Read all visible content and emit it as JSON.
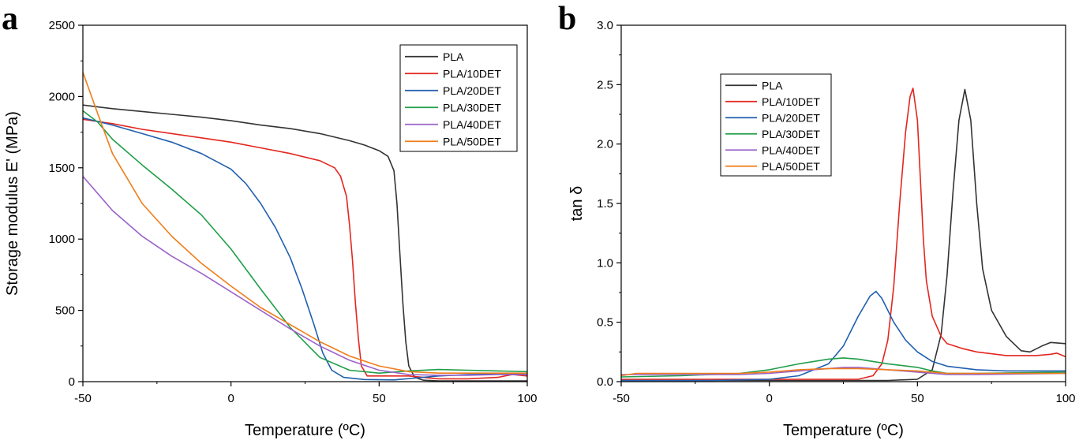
{
  "chart_data": [
    {
      "panel_label": "a",
      "type": "line",
      "xlabel": "Temperature (ºC)",
      "ylabel": "Storage modulus E' (MPa)",
      "xlim": [
        -50,
        100
      ],
      "ylim": [
        0,
        2500
      ],
      "xticks": [
        -50,
        0,
        50,
        100
      ],
      "yticks": [
        0,
        500,
        1000,
        1500,
        2000,
        2500
      ],
      "legend_position": "top-right",
      "series": [
        {
          "name": "PLA",
          "color": "#333333",
          "points": [
            [
              -50,
              1940
            ],
            [
              -40,
              1915
            ],
            [
              -30,
              1895
            ],
            [
              -20,
              1875
            ],
            [
              -10,
              1855
            ],
            [
              0,
              1830
            ],
            [
              10,
              1800
            ],
            [
              20,
              1775
            ],
            [
              30,
              1740
            ],
            [
              40,
              1690
            ],
            [
              45,
              1660
            ],
            [
              50,
              1620
            ],
            [
              53,
              1580
            ],
            [
              55,
              1480
            ],
            [
              56,
              1250
            ],
            [
              57,
              900
            ],
            [
              58,
              550
            ],
            [
              59,
              280
            ],
            [
              60,
              110
            ],
            [
              62,
              30
            ],
            [
              65,
              10
            ],
            [
              70,
              5
            ],
            [
              100,
              5
            ]
          ]
        },
        {
          "name": "PLA/10DET",
          "color": "#e3261f",
          "points": [
            [
              -50,
              1840
            ],
            [
              -40,
              1810
            ],
            [
              -30,
              1770
            ],
            [
              -20,
              1740
            ],
            [
              -10,
              1710
            ],
            [
              0,
              1680
            ],
            [
              10,
              1640
            ],
            [
              20,
              1600
            ],
            [
              30,
              1550
            ],
            [
              35,
              1500
            ],
            [
              37,
              1440
            ],
            [
              39,
              1300
            ],
            [
              40,
              1100
            ],
            [
              41,
              850
            ],
            [
              42,
              550
            ],
            [
              43,
              300
            ],
            [
              44,
              110
            ],
            [
              46,
              40
            ],
            [
              50,
              40
            ],
            [
              60,
              40
            ],
            [
              70,
              20
            ],
            [
              80,
              20
            ],
            [
              90,
              30
            ],
            [
              95,
              50
            ],
            [
              100,
              40
            ]
          ]
        },
        {
          "name": "PLA/20DET",
          "color": "#1f5fae",
          "points": [
            [
              -50,
              1850
            ],
            [
              -40,
              1800
            ],
            [
              -30,
              1740
            ],
            [
              -20,
              1680
            ],
            [
              -10,
              1600
            ],
            [
              0,
              1490
            ],
            [
              5,
              1390
            ],
            [
              10,
              1250
            ],
            [
              15,
              1080
            ],
            [
              20,
              870
            ],
            [
              24,
              650
            ],
            [
              28,
              400
            ],
            [
              31,
              200
            ],
            [
              34,
              80
            ],
            [
              38,
              30
            ],
            [
              45,
              15
            ],
            [
              55,
              12
            ],
            [
              62,
              25
            ],
            [
              70,
              40
            ],
            [
              80,
              50
            ],
            [
              100,
              55
            ]
          ]
        },
        {
          "name": "PLA/30DET",
          "color": "#1f9e48",
          "points": [
            [
              -50,
              1900
            ],
            [
              -45,
              1820
            ],
            [
              -40,
              1700
            ],
            [
              -30,
              1520
            ],
            [
              -20,
              1350
            ],
            [
              -10,
              1170
            ],
            [
              0,
              930
            ],
            [
              10,
              650
            ],
            [
              20,
              380
            ],
            [
              30,
              170
            ],
            [
              40,
              80
            ],
            [
              50,
              60
            ],
            [
              60,
              75
            ],
            [
              70,
              85
            ],
            [
              80,
              80
            ],
            [
              90,
              75
            ],
            [
              100,
              70
            ]
          ]
        },
        {
          "name": "PLA/40DET",
          "color": "#9b63c9",
          "points": [
            [
              -50,
              1440
            ],
            [
              -40,
              1200
            ],
            [
              -30,
              1020
            ],
            [
              -20,
              880
            ],
            [
              -10,
              760
            ],
            [
              0,
              630
            ],
            [
              10,
              500
            ],
            [
              20,
              370
            ],
            [
              30,
              250
            ],
            [
              40,
              150
            ],
            [
              50,
              80
            ],
            [
              60,
              50
            ],
            [
              70,
              45
            ],
            [
              80,
              45
            ],
            [
              90,
              50
            ],
            [
              100,
              50
            ]
          ]
        },
        {
          "name": "PLA/50DET",
          "color": "#f07d1a",
          "points": [
            [
              -50,
              2170
            ],
            [
              -45,
              1880
            ],
            [
              -40,
              1600
            ],
            [
              -30,
              1250
            ],
            [
              -20,
              1020
            ],
            [
              -10,
              830
            ],
            [
              0,
              670
            ],
            [
              10,
              520
            ],
            [
              20,
              400
            ],
            [
              30,
              280
            ],
            [
              40,
              180
            ],
            [
              50,
              110
            ],
            [
              60,
              70
            ],
            [
              70,
              60
            ],
            [
              80,
              60
            ],
            [
              100,
              60
            ]
          ]
        }
      ]
    },
    {
      "panel_label": "b",
      "type": "line",
      "xlabel": "Temperature (ºC)",
      "ylabel": "tan δ",
      "xlim": [
        -50,
        100
      ],
      "ylim": [
        0,
        3.0
      ],
      "xticks": [
        -50,
        0,
        50,
        100
      ],
      "yticks": [
        0.0,
        0.5,
        1.0,
        1.5,
        2.0,
        2.5,
        3.0
      ],
      "legend_position": "top-left",
      "series": [
        {
          "name": "PLA",
          "color": "#333333",
          "points": [
            [
              -50,
              0.01
            ],
            [
              0,
              0.01
            ],
            [
              40,
              0.01
            ],
            [
              50,
              0.02
            ],
            [
              55,
              0.1
            ],
            [
              58,
              0.4
            ],
            [
              60,
              0.9
            ],
            [
              62,
              1.6
            ],
            [
              64,
              2.2
            ],
            [
              66,
              2.46
            ],
            [
              68,
              2.2
            ],
            [
              70,
              1.5
            ],
            [
              72,
              0.95
            ],
            [
              75,
              0.6
            ],
            [
              80,
              0.38
            ],
            [
              85,
              0.26
            ],
            [
              88,
              0.25
            ],
            [
              92,
              0.3
            ],
            [
              95,
              0.33
            ],
            [
              100,
              0.32
            ]
          ]
        },
        {
          "name": "PLA/10DET",
          "color": "#e3261f",
          "points": [
            [
              -50,
              0.02
            ],
            [
              0,
              0.02
            ],
            [
              30,
              0.02
            ],
            [
              35,
              0.05
            ],
            [
              38,
              0.15
            ],
            [
              40,
              0.35
            ],
            [
              42,
              0.8
            ],
            [
              44,
              1.5
            ],
            [
              46,
              2.1
            ],
            [
              47.5,
              2.4
            ],
            [
              48.5,
              2.47
            ],
            [
              50,
              2.2
            ],
            [
              51,
              1.7
            ],
            [
              52,
              1.2
            ],
            [
              53,
              0.85
            ],
            [
              55,
              0.55
            ],
            [
              58,
              0.38
            ],
            [
              60,
              0.32
            ],
            [
              65,
              0.28
            ],
            [
              70,
              0.25
            ],
            [
              80,
              0.22
            ],
            [
              90,
              0.22
            ],
            [
              95,
              0.23
            ],
            [
              97,
              0.24
            ],
            [
              100,
              0.21
            ]
          ]
        },
        {
          "name": "PLA/20DET",
          "color": "#1f5fae",
          "points": [
            [
              -50,
              0.01
            ],
            [
              -20,
              0.01
            ],
            [
              0,
              0.02
            ],
            [
              10,
              0.05
            ],
            [
              20,
              0.15
            ],
            [
              25,
              0.3
            ],
            [
              30,
              0.55
            ],
            [
              34,
              0.72
            ],
            [
              36,
              0.76
            ],
            [
              38,
              0.7
            ],
            [
              42,
              0.5
            ],
            [
              46,
              0.35
            ],
            [
              50,
              0.25
            ],
            [
              55,
              0.17
            ],
            [
              60,
              0.13
            ],
            [
              70,
              0.1
            ],
            [
              80,
              0.09
            ],
            [
              100,
              0.09
            ]
          ]
        },
        {
          "name": "PLA/30DET",
          "color": "#1f9e48",
          "points": [
            [
              -50,
              0.04
            ],
            [
              -30,
              0.05
            ],
            [
              -10,
              0.07
            ],
            [
              0,
              0.1
            ],
            [
              10,
              0.15
            ],
            [
              20,
              0.19
            ],
            [
              25,
              0.2
            ],
            [
              30,
              0.19
            ],
            [
              40,
              0.15
            ],
            [
              50,
              0.12
            ],
            [
              55,
              0.09
            ],
            [
              60,
              0.07
            ],
            [
              70,
              0.07
            ],
            [
              100,
              0.08
            ]
          ]
        },
        {
          "name": "PLA/40DET",
          "color": "#9b63c9",
          "points": [
            [
              -50,
              0.06
            ],
            [
              -30,
              0.06
            ],
            [
              -10,
              0.06
            ],
            [
              0,
              0.07
            ],
            [
              10,
              0.09
            ],
            [
              20,
              0.11
            ],
            [
              25,
              0.12
            ],
            [
              30,
              0.12
            ],
            [
              40,
              0.1
            ],
            [
              50,
              0.08
            ],
            [
              60,
              0.06
            ],
            [
              70,
              0.06
            ],
            [
              100,
              0.07
            ]
          ]
        },
        {
          "name": "PLA/50DET",
          "color": "#f07d1a",
          "points": [
            [
              -50,
              0.05
            ],
            [
              -45,
              0.07
            ],
            [
              -30,
              0.07
            ],
            [
              -10,
              0.07
            ],
            [
              0,
              0.08
            ],
            [
              10,
              0.1
            ],
            [
              20,
              0.11
            ],
            [
              25,
              0.11
            ],
            [
              30,
              0.11
            ],
            [
              40,
              0.1
            ],
            [
              50,
              0.09
            ],
            [
              60,
              0.07
            ],
            [
              70,
              0.07
            ],
            [
              100,
              0.07
            ]
          ]
        }
      ]
    }
  ]
}
